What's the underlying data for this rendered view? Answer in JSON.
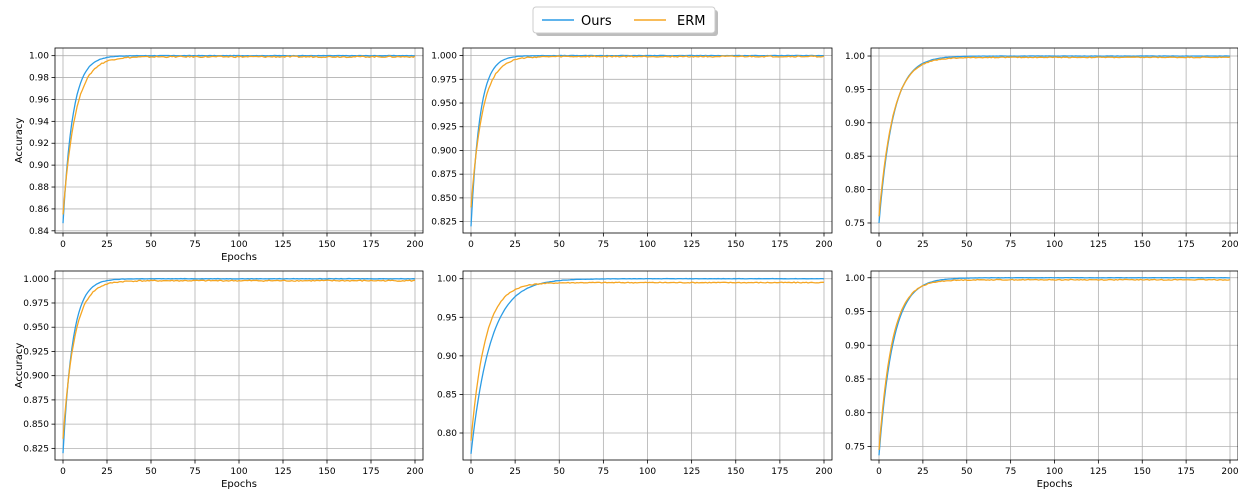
{
  "legend": {
    "placement": "top-center",
    "entries": [
      {
        "name": "Ours",
        "color": "#2b9ce5"
      },
      {
        "name": "ERM",
        "color": "#f5a623"
      }
    ]
  },
  "chart_data": [
    {
      "type": "line",
      "xlabel": "Epochs",
      "ylabel": "Accuracy",
      "xlim": [
        0,
        200
      ],
      "ylim": [
        0.838,
        1.007
      ],
      "xticks": [
        0,
        25,
        50,
        75,
        100,
        125,
        150,
        175,
        200
      ],
      "yticks": [
        0.84,
        0.86,
        0.88,
        0.9,
        0.92,
        0.94,
        0.96,
        0.98,
        1.0
      ],
      "ytick_labels": [
        "0.84",
        "0.86",
        "0.88",
        "0.90",
        "0.92",
        "0.94",
        "0.96",
        "0.98",
        "1.00"
      ],
      "grid": true,
      "series": [
        {
          "name": "Ours",
          "start": 0.847,
          "plateau": 1.0,
          "tau": 5.5
        },
        {
          "name": "ERM",
          "start": 0.855,
          "plateau": 0.999,
          "tau": 7.0
        }
      ]
    },
    {
      "type": "line",
      "xlabel": "",
      "ylabel": "",
      "xlim": [
        0,
        200
      ],
      "ylim": [
        0.813,
        1.008
      ],
      "xticks": [
        0,
        25,
        50,
        75,
        100,
        125,
        150,
        175,
        200
      ],
      "yticks": [
        0.825,
        0.85,
        0.875,
        0.9,
        0.925,
        0.95,
        0.975,
        1.0
      ],
      "ytick_labels": [
        "0.825",
        "0.850",
        "0.875",
        "0.900",
        "0.925",
        "0.950",
        "0.975",
        "1.000"
      ],
      "grid": true,
      "series": [
        {
          "name": "Ours",
          "start": 0.82,
          "plateau": 1.0,
          "tau": 5.0
        },
        {
          "name": "ERM",
          "start": 0.84,
          "plateau": 0.999,
          "tau": 6.5
        }
      ]
    },
    {
      "type": "line",
      "xlabel": "",
      "ylabel": "",
      "xlim": [
        0,
        200
      ],
      "ylim": [
        0.735,
        1.012
      ],
      "xticks": [
        0,
        25,
        50,
        75,
        100,
        125,
        150,
        175,
        200
      ],
      "yticks": [
        0.75,
        0.8,
        0.85,
        0.9,
        0.95,
        1.0
      ],
      "ytick_labels": [
        "0.75",
        "0.80",
        "0.85",
        "0.90",
        "0.95",
        "1.00"
      ],
      "grid": true,
      "series": [
        {
          "name": "Ours",
          "start": 0.75,
          "plateau": 1.0,
          "tau": 8.0
        },
        {
          "name": "ERM",
          "start": 0.76,
          "plateau": 0.998,
          "tau": 8.0
        }
      ]
    },
    {
      "type": "line",
      "xlabel": "Epochs",
      "ylabel": "Accuracy",
      "xlim": [
        0,
        200
      ],
      "ylim": [
        0.813,
        1.008
      ],
      "xticks": [
        0,
        25,
        50,
        75,
        100,
        125,
        150,
        175,
        200
      ],
      "yticks": [
        0.825,
        0.85,
        0.875,
        0.9,
        0.925,
        0.95,
        0.975,
        1.0
      ],
      "ytick_labels": [
        "0.825",
        "0.850",
        "0.875",
        "0.900",
        "0.925",
        "0.950",
        "0.975",
        "1.000"
      ],
      "grid": true,
      "series": [
        {
          "name": "Ours",
          "start": 0.82,
          "plateau": 1.0,
          "tau": 5.5
        },
        {
          "name": "ERM",
          "start": 0.835,
          "plateau": 0.998,
          "tau": 6.5
        }
      ]
    },
    {
      "type": "line",
      "xlabel": "",
      "ylabel": "",
      "xlim": [
        0,
        200
      ],
      "ylim": [
        0.765,
        1.01
      ],
      "xticks": [
        0,
        25,
        50,
        75,
        100,
        125,
        150,
        175,
        200
      ],
      "yticks": [
        0.8,
        0.85,
        0.9,
        0.95,
        1.0
      ],
      "ytick_labels": [
        "0.80",
        "0.85",
        "0.90",
        "0.95",
        "1.00"
      ],
      "grid": true,
      "series": [
        {
          "name": "Ours",
          "start": 0.773,
          "plateau": 1.0,
          "tau": 11.0
        },
        {
          "name": "ERM",
          "start": 0.79,
          "plateau": 0.995,
          "tau": 8.0
        }
      ]
    },
    {
      "type": "line",
      "xlabel": "Epochs",
      "ylabel": "",
      "xlim": [
        0,
        200
      ],
      "ylim": [
        0.73,
        1.01
      ],
      "xticks": [
        0,
        25,
        50,
        75,
        100,
        125,
        150,
        175,
        200
      ],
      "yticks": [
        0.75,
        0.8,
        0.85,
        0.9,
        0.95,
        1.0
      ],
      "ytick_labels": [
        "0.75",
        "0.80",
        "0.85",
        "0.90",
        "0.95",
        "1.00"
      ],
      "grid": true,
      "series": [
        {
          "name": "Ours",
          "start": 0.737,
          "plateau": 1.0,
          "tau": 8.0
        },
        {
          "name": "ERM",
          "start": 0.745,
          "plateau": 0.997,
          "tau": 7.5
        }
      ]
    }
  ]
}
